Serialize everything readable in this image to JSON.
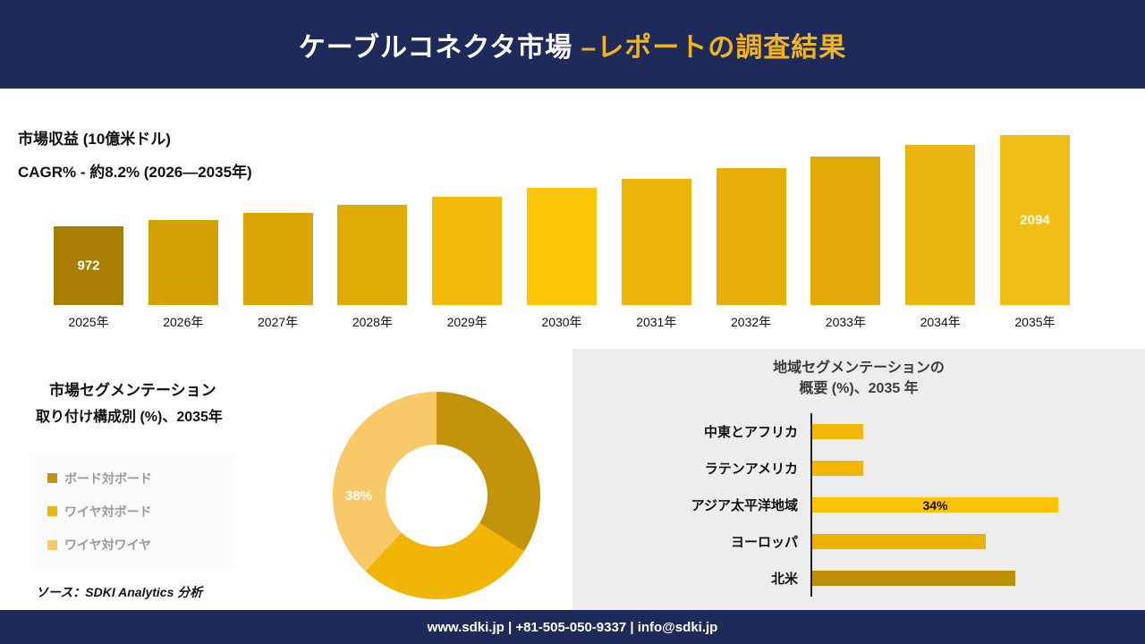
{
  "header": {
    "title_white": "ケーブルコネクタ市場 ",
    "title_gold": "–レポートの調査結果"
  },
  "revenue": {
    "label1": "市場収益 (10億米ドル)",
    "label2": "CAGR% - 約8.2% (2026―2035年)"
  },
  "segmentation": {
    "title1": "市場セグメンテーション",
    "title2": "取り付け構成別 (%)、2035年",
    "donut_label": "38%",
    "source": "ソース：SDKI Analytics 分析"
  },
  "region": {
    "title_line1": "地域セグメンテーションの",
    "title_line2": "概要 (%)、2035 年"
  },
  "footer": {
    "contact": "www.sdki.jp | +81-505-050-9337 | info@sdki.jp"
  },
  "colors": {
    "navy": "#1e2a5a",
    "gold_title": "#f0b41e"
  },
  "chart_data": [
    {
      "type": "bar",
      "title": "市場収益 (10億米ドル)",
      "subtitle": "CAGR% - 約8.2% (2026―2035年)",
      "categories": [
        "2025年",
        "2026年",
        "2027年",
        "2028年",
        "2029年",
        "2030年",
        "2031年",
        "2032年",
        "2033年",
        "2034年",
        "2035年"
      ],
      "values": [
        972,
        1052,
        1138,
        1231,
        1332,
        1441,
        1559,
        1687,
        1826,
        1975,
        2094
      ],
      "colors": [
        "#a97f03",
        "#d3a106",
        "#d9a606",
        "#dfab07",
        "#f0bc09",
        "#fac608",
        "#ebb50a",
        "#e5ae09",
        "#e2aa09",
        "#eab411",
        "#f1bd17"
      ],
      "ylim": [
        0,
        2094
      ],
      "label_indices": [
        0,
        10
      ]
    },
    {
      "type": "pie",
      "title": "取り付け構成別 (%)、2035年",
      "labels": [
        "ボード対ボード",
        "ワイヤ対ボード",
        "ワイヤ対ワイヤ"
      ],
      "values": [
        34,
        28,
        38
      ],
      "colors": [
        "#c3940a",
        "#f0b506",
        "#f8c968"
      ],
      "shown_label": "38%"
    },
    {
      "type": "bar",
      "orientation": "horizontal",
      "title": "地域セグメンテーションの概要 (%)、2035 年",
      "categories": [
        "中東とアフリカ",
        "ラテンアメリカ",
        "アジア太平洋地域",
        "ヨーロッパ",
        "北米"
      ],
      "values": [
        7,
        7,
        34,
        24,
        28
      ],
      "colors": [
        "#f2b606",
        "#f2b606",
        "#fcc305",
        "#ecb106",
        "#bd8f07"
      ],
      "data_labels": [
        "",
        "",
        "34%",
        "",
        ""
      ]
    }
  ]
}
